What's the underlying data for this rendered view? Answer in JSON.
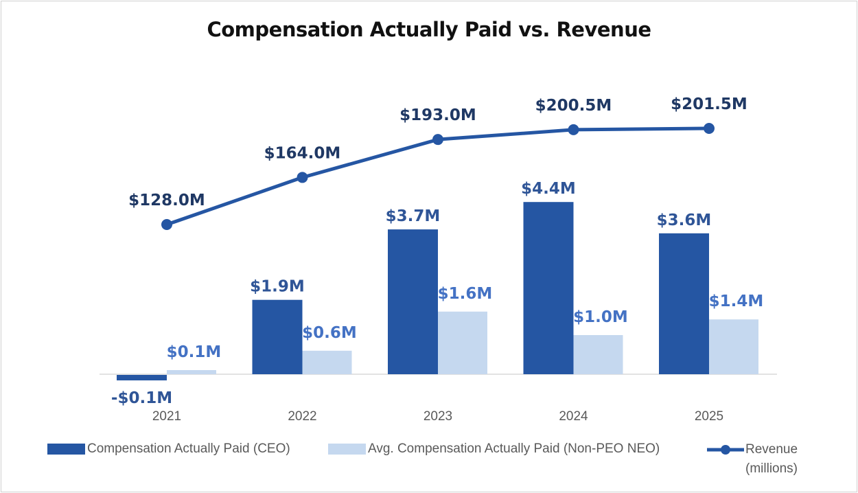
{
  "chart_data": {
    "type": "bar+line",
    "title": "Compensation Actually Paid vs. Revenue",
    "categories": [
      "2021",
      "2022",
      "2023",
      "2024",
      "2025"
    ],
    "series": [
      {
        "name": "Compensation Actually Paid (CEO)",
        "type": "bar",
        "unit": "$M",
        "values": [
          -0.1,
          1.9,
          3.7,
          4.4,
          3.6
        ],
        "labels": [
          "-$0.1M",
          "$1.9M",
          "$3.7M",
          "$4.4M",
          "$3.6M"
        ],
        "color": "#2556A3"
      },
      {
        "name": "Avg. Compensation Actually Paid (Non-PEO NEO)",
        "type": "bar",
        "unit": "$M",
        "values": [
          0.1,
          0.6,
          1.6,
          1.0,
          1.4
        ],
        "labels": [
          "$0.1M",
          "$0.6M",
          "$1.6M",
          "$1.0M",
          "$1.4M"
        ],
        "color": "#C5D8EF"
      },
      {
        "name": "Revenue (millions)",
        "type": "line",
        "unit": "$M",
        "values": [
          128.0,
          164.0,
          193.0,
          200.5,
          201.5
        ],
        "labels": [
          "$128.0M",
          "$164.0M",
          "$193.0M",
          "$200.5M",
          "$201.5M"
        ],
        "color": "#2556A3"
      }
    ],
    "legend": {
      "placement": "bottom",
      "items": [
        "Compensation Actually Paid (CEO)",
        "Avg. Compensation Actually Paid (Non-PEO NEO)",
        "Revenue",
        "(millions)"
      ]
    },
    "grid": false
  }
}
